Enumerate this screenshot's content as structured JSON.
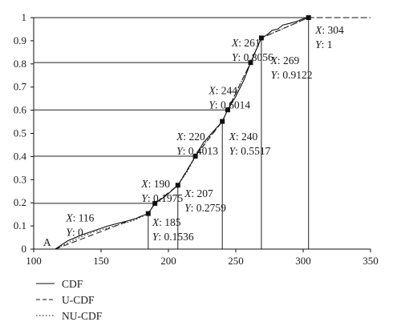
{
  "chart_data": {
    "type": "line",
    "title": "",
    "xlabel": "",
    "ylabel": "",
    "xlim": [
      100,
      350
    ],
    "ylim": [
      0,
      1
    ],
    "x_ticks": [
      "100",
      "150",
      "200",
      "250",
      "300",
      "350"
    ],
    "y_ticks": [
      "0",
      "0.1",
      "0.2",
      "0.3",
      "0.4",
      "0.5",
      "0.6",
      "0.7",
      "0.8",
      "0.9",
      "1"
    ],
    "grid": false,
    "legend_position": "bottom-left",
    "series": [
      {
        "name": "CDF",
        "style": "solid",
        "x": [
          116,
          125,
          135,
          145,
          155,
          165,
          175,
          185,
          190,
          197,
          207,
          214,
          220,
          226,
          232,
          240,
          244,
          250,
          256,
          261,
          265,
          269,
          273,
          277,
          281,
          285,
          290,
          296,
          300,
          304
        ],
        "y": [
          0,
          0.035,
          0.06,
          0.08,
          0.1,
          0.115,
          0.13,
          0.1536,
          0.1975,
          0.225,
          0.2759,
          0.34,
          0.4013,
          0.46,
          0.5,
          0.5517,
          0.6014,
          0.66,
          0.73,
          0.8056,
          0.86,
          0.9122,
          0.925,
          0.945,
          0.95,
          0.968,
          0.975,
          0.985,
          0.995,
          1
        ]
      },
      {
        "name": "U-CDF",
        "style": "dashed",
        "x": [
          116,
          185,
          190,
          207,
          220,
          240,
          244,
          261,
          269,
          304,
          350
        ],
        "y": [
          0,
          0.1536,
          0.1975,
          0.2759,
          0.4013,
          0.5517,
          0.6014,
          0.8056,
          0.9122,
          1,
          1
        ]
      },
      {
        "name": "NU-CDF",
        "style": "dotted",
        "x": [
          116,
          130,
          145,
          160,
          175,
          185,
          190,
          200,
          207,
          214,
          220,
          230,
          240,
          244,
          252,
          261,
          269,
          280,
          290,
          304
        ],
        "y": [
          0,
          0.04,
          0.075,
          0.1,
          0.125,
          0.1536,
          0.1975,
          0.24,
          0.2759,
          0.335,
          0.4013,
          0.48,
          0.5517,
          0.6014,
          0.7,
          0.8056,
          0.9122,
          0.94,
          0.965,
          1
        ]
      }
    ],
    "key_points": [
      {
        "x": 116,
        "y": 0,
        "x_label": "116",
        "y_label": "0",
        "marker": false,
        "drop": false,
        "hline": false,
        "lx": 124,
        "ly": 0.12
      },
      {
        "x": 185,
        "y": 0.1536,
        "x_label": "185",
        "y_label": "0.1536",
        "marker": true,
        "drop": true,
        "hline": false,
        "lx": 188,
        "ly": 0.1
      },
      {
        "x": 190,
        "y": 0.1975,
        "x_label": "190",
        "y_label": "0.1975",
        "marker": true,
        "drop": false,
        "hline": true,
        "lx": 180,
        "ly": 0.266
      },
      {
        "x": 207,
        "y": 0.2759,
        "x_label": "207",
        "y_label": "0.2759",
        "marker": true,
        "drop": true,
        "hline": false,
        "lx": 212,
        "ly": 0.225
      },
      {
        "x": 220,
        "y": 0.4013,
        "x_label": "220",
        "y_label": "0.4013",
        "marker": true,
        "drop": false,
        "hline": true,
        "lx": 206,
        "ly": 0.47
      },
      {
        "x": 240,
        "y": 0.5517,
        "x_label": "240",
        "y_label": "0.5517",
        "marker": true,
        "drop": true,
        "hline": false,
        "lx": 245,
        "ly": 0.47
      },
      {
        "x": 244,
        "y": 0.6014,
        "x_label": "244",
        "y_label": "0.6014",
        "marker": true,
        "drop": false,
        "hline": true,
        "lx": 230,
        "ly": 0.67
      },
      {
        "x": 261,
        "y": 0.8056,
        "x_label": "261",
        "y_label": "0.8056",
        "marker": true,
        "drop": false,
        "hline": true,
        "lx": 247,
        "ly": 0.875
      },
      {
        "x": 269,
        "y": 0.9122,
        "x_label": "269",
        "y_label": "0.9122",
        "marker": true,
        "drop": true,
        "hline": false,
        "lx": 276,
        "ly": 0.8
      },
      {
        "x": 304,
        "y": 1,
        "x_label": "304",
        "y_label": "1",
        "marker": true,
        "drop": true,
        "hline": true,
        "lx": 309,
        "ly": 0.93
      }
    ],
    "point_label": "A",
    "axis_prefix_x": "X",
    "axis_prefix_y": "Y"
  },
  "legend": [
    {
      "label": "CDF",
      "style": "solid"
    },
    {
      "label": "U-CDF",
      "style": "dashed"
    },
    {
      "label": "NU-CDF",
      "style": "dotted"
    }
  ]
}
